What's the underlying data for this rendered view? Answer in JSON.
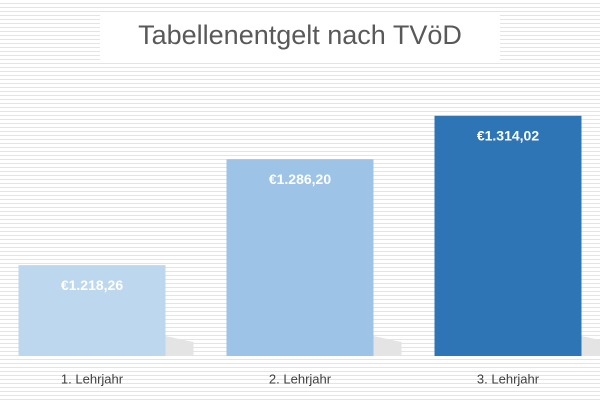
{
  "chart_data": {
    "type": "bar",
    "title": "Tabellenentgelt nach TVöD",
    "categories": [
      "1. Lehrjahr",
      "2. Lehrjahr",
      "3. Lehrjahr"
    ],
    "values": [
      1218.26,
      1286.2,
      1314.02
    ],
    "value_labels": [
      "€1.218,26",
      "€1.286,20",
      "€1.314,02"
    ],
    "colors": [
      "#bdd7ee",
      "#9dc3e6",
      "#2e75b6"
    ],
    "ylim": [
      1160,
      1337
    ]
  }
}
